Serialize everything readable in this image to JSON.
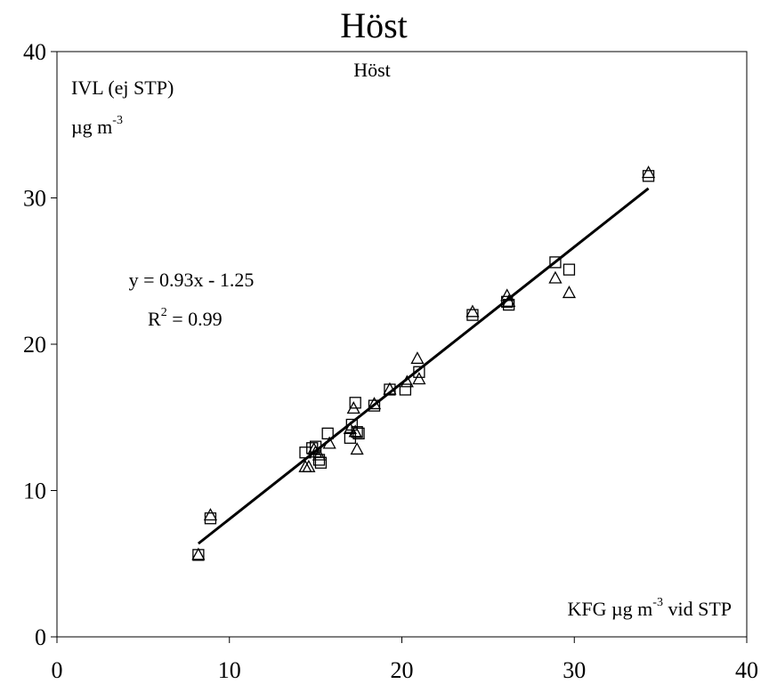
{
  "chart_data": {
    "type": "scatter",
    "title": "Höst",
    "inner_label": "Höst",
    "xlabel": "KFG µg m",
    "xlabel_sup": "-3",
    "xlabel_tail": " vid STP",
    "ylabel": "IVL (ej STP)",
    "yunit": "µg m",
    "yunit_sup": "-3",
    "xlim": [
      0,
      40
    ],
    "ylim": [
      0,
      40
    ],
    "xticks": [
      0,
      10,
      20,
      30,
      40
    ],
    "yticks": [
      0,
      10,
      20,
      30,
      40
    ],
    "xtick_labels": [
      "0",
      "10",
      "20",
      "30",
      "40"
    ],
    "ytick_labels": [
      "0",
      "10",
      "20",
      "30",
      "40"
    ],
    "grid": false,
    "equation": "y = 0.93x - 1.25",
    "r2_label": "R",
    "r2_sup": "2",
    "r2_value": " = 0.99",
    "trendline": {
      "slope": 0.93,
      "intercept": -1.25,
      "x_range": [
        8.2,
        34.3
      ]
    },
    "series": [
      {
        "marker": "square",
        "points": [
          [
            8.2,
            5.6
          ],
          [
            8.9,
            8.1
          ],
          [
            14.4,
            12.6
          ],
          [
            14.8,
            12.9
          ],
          [
            15.0,
            13.0
          ],
          [
            15.2,
            12.1
          ],
          [
            15.3,
            11.9
          ],
          [
            15.7,
            13.9
          ],
          [
            17.0,
            13.6
          ],
          [
            17.1,
            14.5
          ],
          [
            17.3,
            16.0
          ],
          [
            17.4,
            14.0
          ],
          [
            17.5,
            13.9
          ],
          [
            18.4,
            15.8
          ],
          [
            19.3,
            16.9
          ],
          [
            20.2,
            16.9
          ],
          [
            21.0,
            18.1
          ],
          [
            24.1,
            22.0
          ],
          [
            26.1,
            22.9
          ],
          [
            26.2,
            22.7
          ],
          [
            28.9,
            25.6
          ],
          [
            29.7,
            25.1
          ],
          [
            34.3,
            31.5
          ]
        ]
      },
      {
        "marker": "triangle",
        "points": [
          [
            8.2,
            5.6
          ],
          [
            8.9,
            8.3
          ],
          [
            14.4,
            11.6
          ],
          [
            14.6,
            11.6
          ],
          [
            14.9,
            12.8
          ],
          [
            15.0,
            12.6
          ],
          [
            15.2,
            12.4
          ],
          [
            15.8,
            13.2
          ],
          [
            17.0,
            14.2
          ],
          [
            17.2,
            15.6
          ],
          [
            17.3,
            14.0
          ],
          [
            17.4,
            12.8
          ],
          [
            18.4,
            15.9
          ],
          [
            19.3,
            16.9
          ],
          [
            20.3,
            17.4
          ],
          [
            20.9,
            19.0
          ],
          [
            21.0,
            17.6
          ],
          [
            24.1,
            22.2
          ],
          [
            26.1,
            23.3
          ],
          [
            26.2,
            22.9
          ],
          [
            28.9,
            24.5
          ],
          [
            29.7,
            23.5
          ],
          [
            34.3,
            31.7
          ]
        ]
      }
    ]
  }
}
